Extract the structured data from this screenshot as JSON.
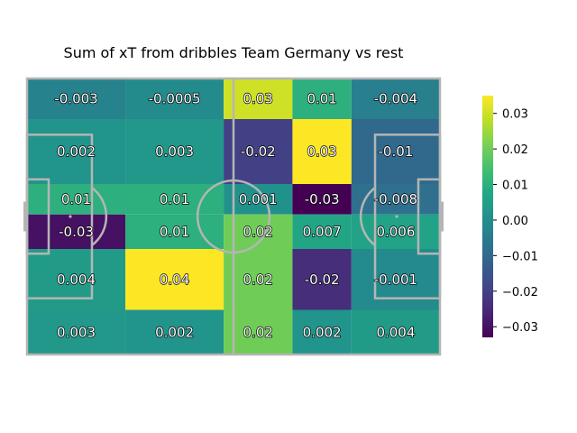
{
  "chart_data": {
    "type": "heatmap",
    "title": "Sum of xT from dribbles Team Germany vs rest",
    "colormap": "viridis",
    "x_bins": 5,
    "y_bins": 6,
    "rows": [
      {
        "values": [
          -0.003,
          -0.0005,
          0.03,
          0.01,
          -0.004
        ],
        "labels": [
          "-0.003",
          "-0.0005",
          "0.03",
          "0.01",
          "-0.004"
        ]
      },
      {
        "values": [
          0.002,
          0.003,
          -0.02,
          0.035,
          -0.01
        ],
        "labels": [
          "0.002",
          "0.003",
          "-0.02",
          "0.03",
          "-0.01"
        ]
      },
      {
        "values": [
          0.01,
          0.01,
          0.001,
          -0.033,
          -0.008
        ],
        "labels": [
          "0.01",
          "0.01",
          "0.001",
          "-0.03",
          "-0.008"
        ]
      },
      {
        "values": [
          -0.03,
          0.01,
          0.02,
          0.007,
          0.006
        ],
        "labels": [
          "-0.03",
          "0.01",
          "0.02",
          "0.007",
          "0.006"
        ]
      },
      {
        "values": [
          0.004,
          0.04,
          0.02,
          -0.024,
          -0.001
        ],
        "labels": [
          "0.004",
          "0.04",
          "0.02",
          "-0.02",
          "-0.001"
        ]
      },
      {
        "values": [
          0.003,
          0.002,
          0.02,
          0.002,
          0.004
        ],
        "labels": [
          "0.003",
          "0.002",
          "0.02",
          "0.002",
          "0.004"
        ]
      }
    ],
    "vmin": -0.033,
    "vmax": 0.035,
    "colorbar": {
      "ticks": [
        0.03,
        0.02,
        0.01,
        0.0,
        -0.01,
        -0.02,
        -0.03
      ],
      "tick_labels": [
        "0.03",
        "0.02",
        "0.01",
        "0.00",
        "−0.01",
        "−0.02",
        "−0.03"
      ]
    }
  },
  "pitch": {
    "line_color": "#b5b5b5"
  }
}
